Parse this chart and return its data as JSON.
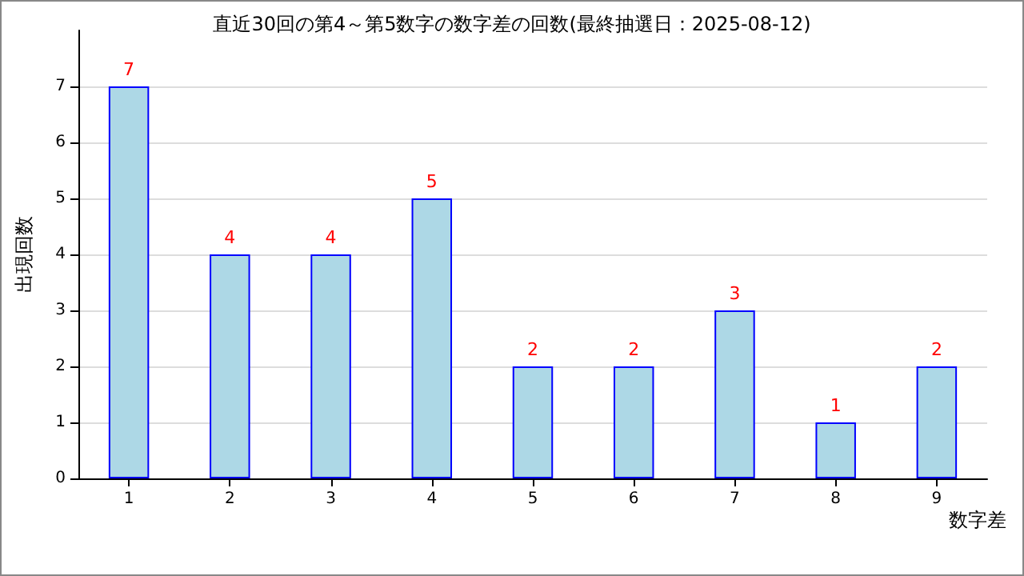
{
  "chart_data": {
    "type": "bar",
    "title": "直近30回の第4～第5数字の数字差の回数(最終抽選日：2025-08-12)",
    "xlabel": "数字差",
    "ylabel": "出現回数",
    "categories": [
      "1",
      "2",
      "3",
      "4",
      "5",
      "6",
      "7",
      "8",
      "9"
    ],
    "values": [
      7,
      4,
      4,
      5,
      2,
      2,
      3,
      1,
      2
    ],
    "color": "#add8e6",
    "ylim": [
      0,
      8
    ],
    "yticks": [
      0,
      1,
      2,
      3,
      4,
      5,
      6,
      7
    ],
    "grid": "y",
    "data_labels": true
  }
}
